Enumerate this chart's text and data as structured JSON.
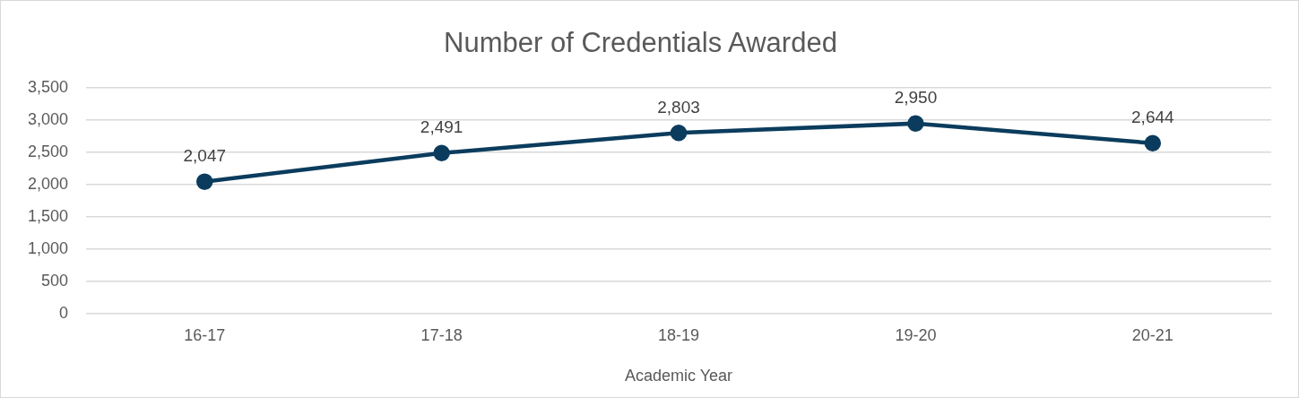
{
  "chart_data": {
    "type": "line",
    "title": "Number of Credentials Awarded",
    "xlabel": "Academic Year",
    "categories": [
      "16-17",
      "17-18",
      "18-19",
      "19-20",
      "20-21"
    ],
    "series": [
      {
        "color": "#0b3c5d",
        "values": [
          2047,
          2491,
          2803,
          2950,
          2644
        ],
        "value_labels": [
          "2,047",
          "2,491",
          "2,803",
          "2,950",
          "2,644"
        ]
      }
    ],
    "ylim": [
      0,
      3500
    ],
    "yticks": [
      0,
      500,
      {
        "value": 1000,
        "label": "1,000"
      },
      {
        "value": 1500,
        "label": "1,500"
      },
      {
        "value": 2000,
        "label": "2,000"
      },
      {
        "value": 2500,
        "label": "2,500"
      },
      {
        "value": 3000,
        "label": "3,000"
      },
      {
        "value": 3500,
        "label": "3,500"
      }
    ],
    "grid": "y",
    "legend": false,
    "marker": "circle",
    "line_style": "solid"
  }
}
